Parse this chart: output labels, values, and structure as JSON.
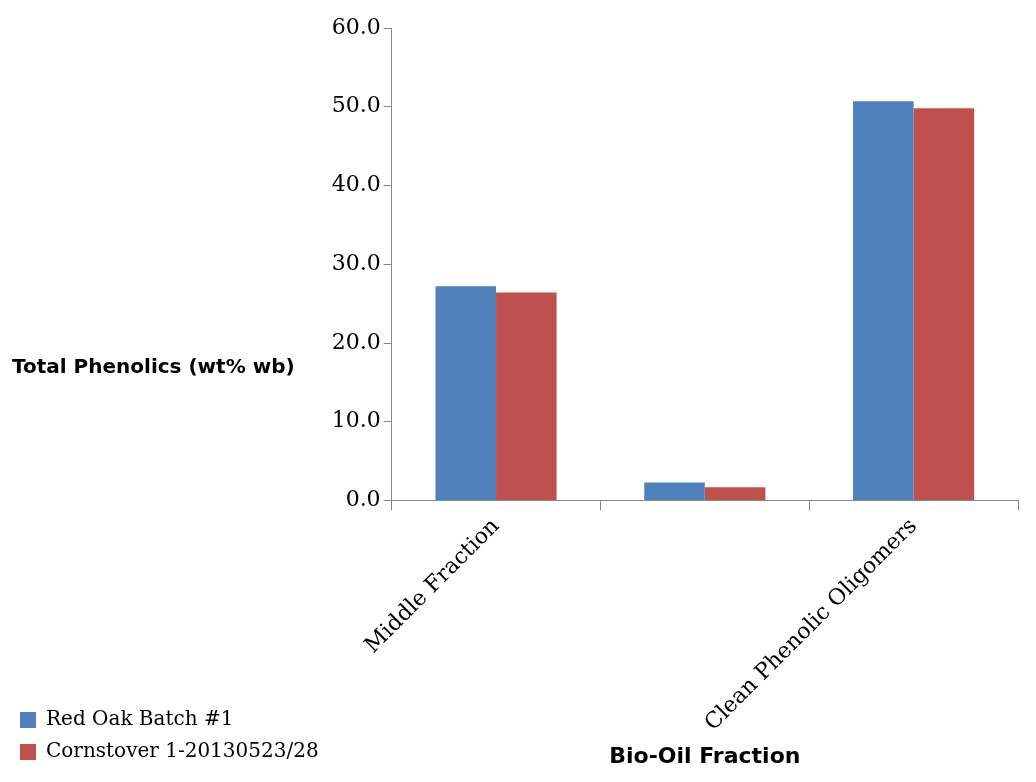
{
  "chart_data": {
    "type": "bar",
    "xlabel": "Bio-Oil Fraction",
    "ylabel": "Total Phenolics (wt% wb)",
    "categories": [
      "Middle Fraction",
      null,
      "Clean Phenolic Oligomers"
    ],
    "series": [
      {
        "name": "Red Oak Batch #1",
        "color": "#4f81bd",
        "values": [
          27.2,
          2.3,
          50.7
        ]
      },
      {
        "name": "Cornstover 1-20130523/28",
        "color": "#c0504d",
        "values": [
          26.4,
          1.7,
          49.8
        ]
      }
    ],
    "ylim": [
      0,
      60
    ],
    "yticks": [
      {
        "value": 0,
        "label": "0.0"
      },
      {
        "value": 10,
        "label": "10.0"
      },
      {
        "value": 20,
        "label": "20.0"
      },
      {
        "value": 30,
        "label": "30.0"
      },
      {
        "value": 40,
        "label": "40.0"
      },
      {
        "value": 50,
        "label": "50.0"
      },
      {
        "value": 60,
        "label": "60.0"
      }
    ],
    "grid": false,
    "legend": "left"
  }
}
